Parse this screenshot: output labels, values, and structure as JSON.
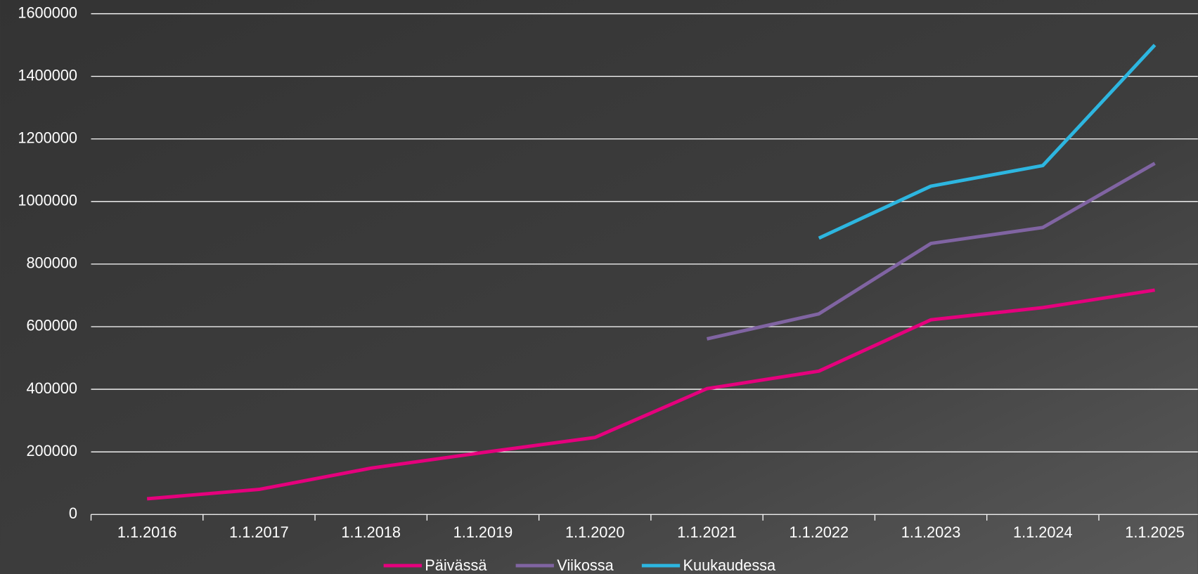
{
  "chart_data": {
    "type": "line",
    "categories": [
      "1.1.2016",
      "1.1.2017",
      "1.1.2018",
      "1.1.2019",
      "1.1.2020",
      "1.1.2021",
      "1.1.2022",
      "1.1.2023",
      "1.1.2024",
      "1.1.2025"
    ],
    "series": [
      {
        "name": "Päivässä",
        "color": "#e5007d",
        "values": [
          50000,
          80000,
          148000,
          198000,
          246000,
          402000,
          458000,
          622000,
          661000,
          717000
        ]
      },
      {
        "name": "Viikossa",
        "color": "#8064a2",
        "values": [
          null,
          null,
          null,
          null,
          null,
          561000,
          641000,
          866000,
          917000,
          1122000
        ]
      },
      {
        "name": "Kuukaudessa",
        "color": "#2db6e0",
        "values": [
          null,
          null,
          null,
          null,
          null,
          null,
          883000,
          1049000,
          1115000,
          1500000
        ]
      }
    ],
    "ylim": [
      0,
      1600000
    ],
    "yticks": [
      0,
      200000,
      400000,
      600000,
      800000,
      1000000,
      1200000,
      1400000,
      1600000
    ],
    "grid": true,
    "legend": "bottom"
  }
}
